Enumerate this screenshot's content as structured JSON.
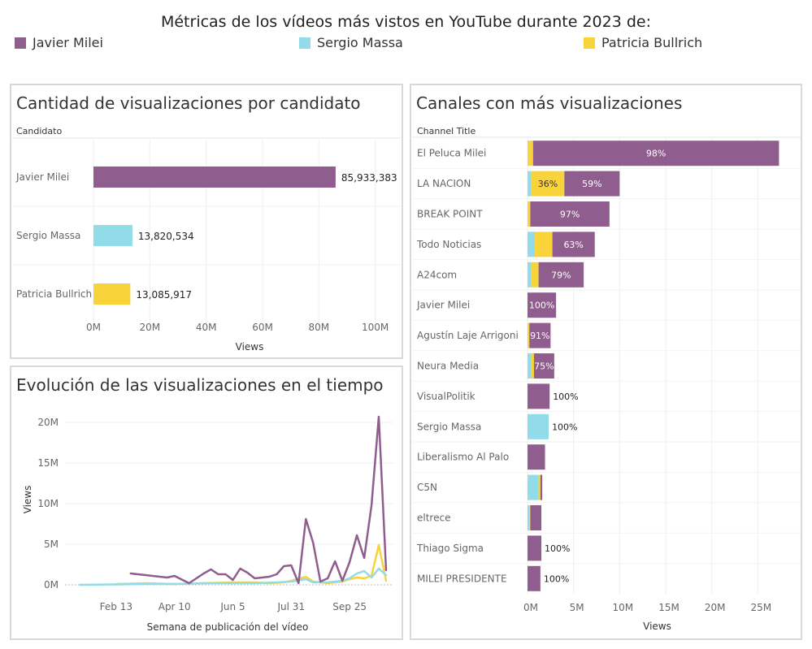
{
  "header": {
    "title": "Métricas de los vídeos más vistos en YouTube durante 2023 de:",
    "legend": [
      {
        "label": "Javier Milei",
        "color": "#8F5E8E"
      },
      {
        "label": "Sergio Massa",
        "color": "#91DCE8"
      },
      {
        "label": "Patricia Bullrich",
        "color": "#F9D33A"
      }
    ]
  },
  "panels": {
    "candidates": {
      "title": "Cantidad de visualizaciones por candidato"
    },
    "channels": {
      "title": "Canales con más visualizaciones"
    },
    "timeline": {
      "title": "Evolución de las visualizaciones en el tiempo"
    }
  },
  "chart_data": [
    {
      "id": "candidates",
      "type": "bar",
      "orientation": "horizontal",
      "row_header": "Candidato",
      "categories": [
        "Javier Milei",
        "Sergio Massa",
        "Patricia Bullrich"
      ],
      "values": [
        85933383,
        13820534,
        13085917
      ],
      "value_labels": [
        "85,933,383",
        "13,820,534",
        "13,085,917"
      ],
      "colors": [
        "#8F5E8E",
        "#91DCE8",
        "#F9D33A"
      ],
      "xlabel": "Views",
      "xlim": [
        0,
        105000000
      ],
      "xticks": [
        0,
        20000000,
        40000000,
        60000000,
        80000000,
        100000000
      ],
      "xtick_labels": [
        "0M",
        "20M",
        "40M",
        "60M",
        "80M",
        "100M"
      ],
      "grid": true
    },
    {
      "id": "channels",
      "type": "bar",
      "orientation": "horizontal",
      "stacked": true,
      "row_header": "Channel Title",
      "xlabel": "Views",
      "xlim": [
        0,
        28500000
      ],
      "xticks": [
        0,
        5000000,
        10000000,
        15000000,
        20000000,
        25000000
      ],
      "xtick_labels": [
        "0M",
        "5M",
        "10M",
        "15M",
        "20M",
        "25M"
      ],
      "series_order": [
        "Sergio Massa",
        "Patricia Bullrich",
        "Javier Milei"
      ],
      "series_colors": [
        "#91DCE8",
        "#F9D33A",
        "#8F5E8E"
      ],
      "channels": [
        {
          "name": "El Peluca Milei",
          "values": [
            0,
            600000,
            26700000
          ],
          "labels": [
            "",
            "",
            "98%"
          ],
          "outside_label": ""
        },
        {
          "name": "LA NACION",
          "values": [
            400000,
            3600000,
            6000000
          ],
          "labels": [
            "",
            "36%",
            "59%"
          ],
          "outside_label": ""
        },
        {
          "name": "BREAK POINT",
          "values": [
            0,
            300000,
            8600000
          ],
          "labels": [
            "",
            "",
            "97%"
          ],
          "outside_label": ""
        },
        {
          "name": "Todo Noticias",
          "values": [
            800000,
            1900000,
            4600000
          ],
          "labels": [
            "",
            "",
            "63%"
          ],
          "outside_label": ""
        },
        {
          "name": "A24com",
          "values": [
            400000,
            800000,
            4900000
          ],
          "labels": [
            "",
            "",
            "79%"
          ],
          "outside_label": ""
        },
        {
          "name": "Javier Milei",
          "values": [
            0,
            0,
            3100000
          ],
          "labels": [
            "",
            "",
            "100%"
          ],
          "outside_label": ""
        },
        {
          "name": "Agustín Laje Arrigoni",
          "values": [
            0,
            200000,
            2300000
          ],
          "labels": [
            "",
            "",
            "91%"
          ],
          "outside_label": ""
        },
        {
          "name": "Neura Media",
          "values": [
            400000,
            300000,
            2200000
          ],
          "labels": [
            "",
            "",
            "75%"
          ],
          "outside_label": ""
        },
        {
          "name": "VisualPolitik",
          "values": [
            0,
            0,
            2400000
          ],
          "labels": [
            "",
            "",
            ""
          ],
          "outside_label": "100%"
        },
        {
          "name": "Sergio Massa",
          "values": [
            2300000,
            0,
            0
          ],
          "labels": [
            "",
            "",
            ""
          ],
          "outside_label": "100%"
        },
        {
          "name": "Liberalismo Al Palo",
          "values": [
            0,
            0,
            1900000
          ],
          "labels": [
            "",
            "",
            ""
          ],
          "outside_label": ""
        },
        {
          "name": "C5N",
          "values": [
            1200000,
            200000,
            200000
          ],
          "labels": [
            "",
            "",
            ""
          ],
          "outside_label": ""
        },
        {
          "name": "eltrece",
          "values": [
            200000,
            100000,
            1200000
          ],
          "labels": [
            "",
            "",
            ""
          ],
          "outside_label": ""
        },
        {
          "name": "Thiago Sigma",
          "values": [
            0,
            0,
            1500000
          ],
          "labels": [
            "",
            "",
            ""
          ],
          "outside_label": "100%"
        },
        {
          "name": "MILEI PRESIDENTE",
          "values": [
            0,
            0,
            1400000
          ],
          "labels": [
            "",
            "",
            ""
          ],
          "outside_label": "100%"
        }
      ],
      "grid": true
    },
    {
      "id": "timeline",
      "type": "line",
      "xlabel": "Semana de publicación del vídeo",
      "ylabel": "Views",
      "x_domain": [
        "2022-12-26",
        "2023-11-06"
      ],
      "xticks": [
        "2023-02-13",
        "2023-04-10",
        "2023-06-05",
        "2023-07-31",
        "2023-09-25"
      ],
      "xtick_labels": [
        "Feb 13",
        "Apr 10",
        "Jun 5",
        "Jul 31",
        "Sep 25"
      ],
      "ylim": [
        0,
        21000000
      ],
      "yticks": [
        0,
        5000000,
        10000000,
        15000000,
        20000000
      ],
      "ytick_labels": [
        "0M",
        "5M",
        "10M",
        "15M",
        "20M"
      ],
      "grid": true,
      "series": [
        {
          "name": "Javier Milei",
          "color": "#8F5E8E",
          "points": [
            [
              "2023-02-27",
              1400000
            ],
            [
              "2023-04-03",
              900000
            ],
            [
              "2023-04-10",
              1100000
            ],
            [
              "2023-04-24",
              200000
            ],
            [
              "2023-05-08",
              1400000
            ],
            [
              "2023-05-15",
              1900000
            ],
            [
              "2023-05-22",
              1300000
            ],
            [
              "2023-05-29",
              1300000
            ],
            [
              "2023-06-05",
              600000
            ],
            [
              "2023-06-12",
              2000000
            ],
            [
              "2023-06-19",
              1500000
            ],
            [
              "2023-06-26",
              800000
            ],
            [
              "2023-07-03",
              900000
            ],
            [
              "2023-07-10",
              1000000
            ],
            [
              "2023-07-17",
              1300000
            ],
            [
              "2023-07-24",
              2300000
            ],
            [
              "2023-07-31",
              2400000
            ],
            [
              "2023-08-07",
              200000
            ],
            [
              "2023-08-14",
              8100000
            ],
            [
              "2023-08-21",
              5200000
            ],
            [
              "2023-08-28",
              400000
            ],
            [
              "2023-09-04",
              800000
            ],
            [
              "2023-09-11",
              2900000
            ],
            [
              "2023-09-18",
              500000
            ],
            [
              "2023-09-25",
              2800000
            ],
            [
              "2023-10-02",
              6100000
            ],
            [
              "2023-10-09",
              3300000
            ],
            [
              "2023-10-16",
              9800000
            ],
            [
              "2023-10-23",
              20700000
            ],
            [
              "2023-10-30",
              1800000
            ]
          ]
        },
        {
          "name": "Sergio Massa",
          "color": "#91DCE8",
          "points": [
            [
              "2023-01-09",
              0
            ],
            [
              "2023-02-13",
              50000
            ],
            [
              "2023-03-13",
              100000
            ],
            [
              "2023-04-10",
              100000
            ],
            [
              "2023-05-08",
              200000
            ],
            [
              "2023-06-05",
              200000
            ],
            [
              "2023-06-26",
              200000
            ],
            [
              "2023-07-17",
              300000
            ],
            [
              "2023-07-31",
              400000
            ],
            [
              "2023-08-14",
              700000
            ],
            [
              "2023-08-21",
              300000
            ],
            [
              "2023-09-04",
              300000
            ],
            [
              "2023-09-18",
              500000
            ],
            [
              "2023-09-25",
              800000
            ],
            [
              "2023-10-02",
              1400000
            ],
            [
              "2023-10-09",
              1700000
            ],
            [
              "2023-10-16",
              900000
            ],
            [
              "2023-10-23",
              2000000
            ],
            [
              "2023-10-30",
              1200000
            ]
          ]
        },
        {
          "name": "Patricia Bullrich",
          "color": "#F9D33A",
          "points": [
            [
              "2023-02-13",
              100000
            ],
            [
              "2023-03-13",
              200000
            ],
            [
              "2023-04-10",
              100000
            ],
            [
              "2023-05-08",
              200000
            ],
            [
              "2023-06-05",
              300000
            ],
            [
              "2023-06-26",
              300000
            ],
            [
              "2023-07-10",
              200000
            ],
            [
              "2023-07-24",
              300000
            ],
            [
              "2023-07-31",
              500000
            ],
            [
              "2023-08-14",
              1000000
            ],
            [
              "2023-08-21",
              400000
            ],
            [
              "2023-09-04",
              200000
            ],
            [
              "2023-09-18",
              400000
            ],
            [
              "2023-09-25",
              700000
            ],
            [
              "2023-10-02",
              900000
            ],
            [
              "2023-10-09",
              800000
            ],
            [
              "2023-10-16",
              1100000
            ],
            [
              "2023-10-23",
              4900000
            ],
            [
              "2023-10-30",
              500000
            ]
          ]
        }
      ]
    }
  ]
}
